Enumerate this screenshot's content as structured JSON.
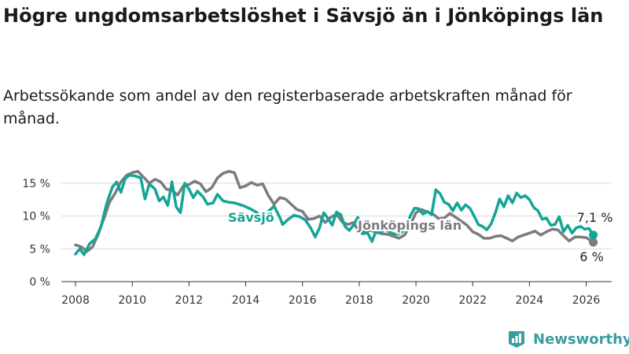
{
  "title": "Högre ungdomsarbetslöshet i Sävsjö än i Jönköpings län",
  "subtitle": "Arbetssökande som andel av den registerbaserade arbetskraften månad för månad.",
  "brand": "Newsworthy",
  "colors": {
    "savsjo": "#12a596",
    "lan": "#7b7b80",
    "grid": "#d9d9d9",
    "brand": "#3a9e9e"
  },
  "chart_data": {
    "type": "line",
    "xlim": [
      2007.5,
      2026.9
    ],
    "ylim": [
      0,
      17.5
    ],
    "x_ticks": [
      2008,
      2010,
      2012,
      2014,
      2016,
      2018,
      2020,
      2022,
      2024,
      2026
    ],
    "x_tick_labels": [
      "2008",
      "2010",
      "2012",
      "2014",
      "2016",
      "2018",
      "2020",
      "2022",
      "2024",
      "2026"
    ],
    "y_ticks": [
      0,
      5,
      10,
      15
    ],
    "y_tick_labels": [
      "0 %",
      "5 %",
      "10 %",
      "15 %"
    ],
    "series": [
      {
        "name": "Jönköpings län",
        "label": "Jönköpings län",
        "end_label": "6 %",
        "points": [
          [
            2008.0,
            5.6
          ],
          [
            2008.2,
            5.3
          ],
          [
            2008.4,
            4.6
          ],
          [
            2008.6,
            5.3
          ],
          [
            2008.8,
            7.2
          ],
          [
            2009.0,
            9.6
          ],
          [
            2009.2,
            12.1
          ],
          [
            2009.4,
            13.5
          ],
          [
            2009.6,
            15.2
          ],
          [
            2009.8,
            16.2
          ],
          [
            2010.0,
            16.6
          ],
          [
            2010.2,
            16.8
          ],
          [
            2010.4,
            15.9
          ],
          [
            2010.6,
            15.0
          ],
          [
            2010.8,
            15.6
          ],
          [
            2011.0,
            15.2
          ],
          [
            2011.2,
            14.1
          ],
          [
            2011.4,
            13.9
          ],
          [
            2011.6,
            13.2
          ],
          [
            2011.8,
            14.6
          ],
          [
            2012.0,
            14.8
          ],
          [
            2012.2,
            15.3
          ],
          [
            2012.4,
            14.9
          ],
          [
            2012.6,
            13.7
          ],
          [
            2012.8,
            14.3
          ],
          [
            2013.0,
            15.8
          ],
          [
            2013.2,
            16.5
          ],
          [
            2013.4,
            16.8
          ],
          [
            2013.6,
            16.6
          ],
          [
            2013.8,
            14.3
          ],
          [
            2014.0,
            14.6
          ],
          [
            2014.2,
            15.1
          ],
          [
            2014.4,
            14.7
          ],
          [
            2014.6,
            14.9
          ],
          [
            2014.8,
            13.1
          ],
          [
            2015.0,
            11.8
          ],
          [
            2015.2,
            12.8
          ],
          [
            2015.4,
            12.6
          ],
          [
            2015.6,
            11.8
          ],
          [
            2015.8,
            11.0
          ],
          [
            2016.0,
            10.7
          ],
          [
            2016.2,
            9.5
          ],
          [
            2016.4,
            9.6
          ],
          [
            2016.6,
            10.0
          ],
          [
            2016.8,
            9.0
          ],
          [
            2017.0,
            9.8
          ],
          [
            2017.2,
            10.3
          ],
          [
            2017.4,
            9.1
          ],
          [
            2017.6,
            8.7
          ],
          [
            2017.8,
            9.0
          ],
          [
            2018.0,
            7.6
          ],
          [
            2018.2,
            7.7
          ],
          [
            2018.4,
            7.8
          ],
          [
            2018.6,
            7.5
          ],
          [
            2018.8,
            7.3
          ],
          [
            2019.0,
            7.2
          ],
          [
            2019.2,
            6.9
          ],
          [
            2019.4,
            6.6
          ],
          [
            2019.6,
            7.1
          ],
          [
            2019.8,
            8.6
          ],
          [
            2020.0,
            10.5
          ],
          [
            2020.2,
            11.0
          ],
          [
            2020.4,
            10.6
          ],
          [
            2020.6,
            10.3
          ],
          [
            2020.8,
            9.6
          ],
          [
            2021.0,
            9.7
          ],
          [
            2021.2,
            10.4
          ],
          [
            2021.4,
            9.8
          ],
          [
            2021.6,
            9.2
          ],
          [
            2021.8,
            8.6
          ],
          [
            2022.0,
            7.6
          ],
          [
            2022.2,
            7.2
          ],
          [
            2022.4,
            6.6
          ],
          [
            2022.6,
            6.6
          ],
          [
            2022.8,
            6.9
          ],
          [
            2023.0,
            7.0
          ],
          [
            2023.2,
            6.6
          ],
          [
            2023.4,
            6.2
          ],
          [
            2023.6,
            6.8
          ],
          [
            2023.8,
            7.1
          ],
          [
            2024.0,
            7.4
          ],
          [
            2024.2,
            7.7
          ],
          [
            2024.4,
            7.1
          ],
          [
            2024.6,
            7.6
          ],
          [
            2024.8,
            8.0
          ],
          [
            2025.0,
            7.9
          ],
          [
            2025.2,
            7.0
          ],
          [
            2025.4,
            6.2
          ],
          [
            2025.6,
            6.8
          ],
          [
            2025.8,
            6.8
          ],
          [
            2026.0,
            6.7
          ],
          [
            2026.15,
            6.3
          ],
          [
            2026.25,
            6.0
          ]
        ]
      },
      {
        "name": "Sävsjö",
        "label": "Sävsjö",
        "end_label": "7,1 %",
        "points": [
          [
            2008.0,
            4.2
          ],
          [
            2008.15,
            5.0
          ],
          [
            2008.3,
            4.1
          ],
          [
            2008.5,
            5.8
          ],
          [
            2008.7,
            6.5
          ],
          [
            2008.9,
            8.4
          ],
          [
            2009.1,
            11.9
          ],
          [
            2009.3,
            14.4
          ],
          [
            2009.45,
            15.2
          ],
          [
            2009.6,
            13.6
          ],
          [
            2009.75,
            15.7
          ],
          [
            2009.9,
            16.2
          ],
          [
            2010.1,
            16.1
          ],
          [
            2010.3,
            15.8
          ],
          [
            2010.45,
            12.6
          ],
          [
            2010.6,
            14.9
          ],
          [
            2010.8,
            14.1
          ],
          [
            2010.95,
            12.3
          ],
          [
            2011.1,
            12.9
          ],
          [
            2011.25,
            11.6
          ],
          [
            2011.4,
            15.2
          ],
          [
            2011.55,
            11.4
          ],
          [
            2011.7,
            10.5
          ],
          [
            2011.85,
            15.0
          ],
          [
            2012.0,
            14.1
          ],
          [
            2012.15,
            12.8
          ],
          [
            2012.3,
            13.8
          ],
          [
            2012.5,
            12.9
          ],
          [
            2012.65,
            11.8
          ],
          [
            2012.85,
            12.0
          ],
          [
            2013.0,
            13.3
          ],
          [
            2013.2,
            12.3
          ],
          [
            2013.4,
            12.1
          ],
          [
            2013.6,
            12.0
          ],
          [
            2013.75,
            11.8
          ],
          [
            2013.9,
            11.6
          ],
          [
            2014.2,
            11.0
          ],
          [
            2014.4,
            10.5
          ],
          [
            2014.6,
            9.4
          ],
          [
            2014.8,
            10.7
          ],
          [
            2015.0,
            11.5
          ],
          [
            2015.2,
            9.8
          ],
          [
            2015.3,
            8.7
          ],
          [
            2015.5,
            9.5
          ],
          [
            2015.7,
            10.1
          ],
          [
            2015.9,
            9.9
          ],
          [
            2016.1,
            9.4
          ],
          [
            2016.3,
            8.1
          ],
          [
            2016.45,
            6.8
          ],
          [
            2016.6,
            8.2
          ],
          [
            2016.75,
            10.5
          ],
          [
            2016.9,
            9.6
          ],
          [
            2017.05,
            8.6
          ],
          [
            2017.2,
            10.6
          ],
          [
            2017.35,
            10.2
          ],
          [
            2017.5,
            8.4
          ],
          [
            2017.65,
            7.8
          ],
          [
            2017.8,
            8.6
          ],
          [
            2017.95,
            9.8
          ],
          [
            2018.1,
            7.3
          ],
          [
            2018.3,
            7.4
          ],
          [
            2018.45,
            6.1
          ],
          [
            2018.6,
            7.8
          ],
          [
            2018.75,
            7.4
          ],
          [
            2018.9,
            8.0
          ],
          [
            2019.05,
            7.6
          ],
          [
            2019.2,
            7.3
          ],
          [
            2019.35,
            7.2
          ],
          [
            2019.5,
            7.5
          ],
          [
            2019.65,
            8.4
          ],
          [
            2019.8,
            10.0
          ],
          [
            2019.95,
            11.2
          ],
          [
            2020.1,
            11.1
          ],
          [
            2020.25,
            10.3
          ],
          [
            2020.4,
            10.7
          ],
          [
            2020.55,
            10.2
          ],
          [
            2020.7,
            14.0
          ],
          [
            2020.85,
            13.4
          ],
          [
            2021.0,
            12.1
          ],
          [
            2021.15,
            11.8
          ],
          [
            2021.3,
            10.8
          ],
          [
            2021.45,
            12.0
          ],
          [
            2021.6,
            10.9
          ],
          [
            2021.75,
            11.7
          ],
          [
            2021.9,
            11.2
          ],
          [
            2022.05,
            10.0
          ],
          [
            2022.2,
            8.7
          ],
          [
            2022.35,
            8.4
          ],
          [
            2022.5,
            7.9
          ],
          [
            2022.65,
            8.8
          ],
          [
            2022.8,
            10.5
          ],
          [
            2022.95,
            12.6
          ],
          [
            2023.1,
            11.4
          ],
          [
            2023.25,
            13.1
          ],
          [
            2023.4,
            12.0
          ],
          [
            2023.55,
            13.5
          ],
          [
            2023.7,
            12.8
          ],
          [
            2023.85,
            13.1
          ],
          [
            2024.0,
            12.5
          ],
          [
            2024.15,
            11.3
          ],
          [
            2024.3,
            10.8
          ],
          [
            2024.45,
            9.5
          ],
          [
            2024.6,
            9.7
          ],
          [
            2024.75,
            8.6
          ],
          [
            2024.9,
            8.7
          ],
          [
            2025.05,
            9.9
          ],
          [
            2025.2,
            7.6
          ],
          [
            2025.35,
            8.6
          ],
          [
            2025.5,
            7.4
          ],
          [
            2025.65,
            8.2
          ],
          [
            2025.8,
            8.4
          ],
          [
            2025.95,
            8.0
          ],
          [
            2026.1,
            8.1
          ],
          [
            2026.25,
            7.1
          ]
        ]
      }
    ]
  }
}
